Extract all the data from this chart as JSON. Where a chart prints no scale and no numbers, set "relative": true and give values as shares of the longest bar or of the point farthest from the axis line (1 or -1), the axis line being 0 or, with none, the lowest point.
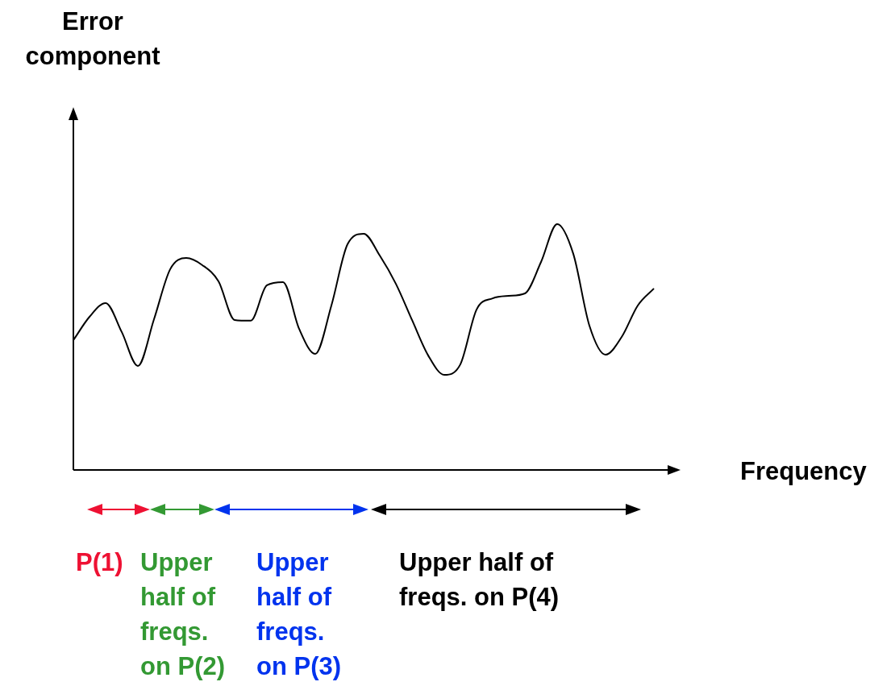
{
  "chart_data": {
    "type": "line",
    "relative": true,
    "xlabel": "Frequency",
    "categories": [
      null,
      null,
      null,
      null,
      null,
      null,
      null,
      null,
      null,
      null,
      null,
      null,
      null,
      null,
      null,
      null,
      null,
      null,
      null,
      null,
      null,
      null,
      null,
      null,
      null,
      null,
      null,
      null,
      null,
      null,
      null,
      null,
      null,
      null,
      null,
      null,
      null
    ],
    "series": [
      {
        "color": "#000000",
        "values": [
          0.528,
          0.623,
          0.679,
          0.561,
          0.423,
          0.613,
          0.816,
          0.862,
          0.833,
          0.767,
          0.61,
          0.607,
          0.751,
          0.764,
          0.574,
          0.472,
          0.669,
          0.918,
          0.961,
          0.872,
          0.757,
          0.61,
          0.466,
          0.387,
          0.43,
          0.652,
          0.698,
          0.708,
          0.718,
          0.846,
          1,
          0.879,
          0.587,
          0.469,
          0.541,
          0.669,
          0.738
        ]
      }
    ],
    "marker": "none",
    "line_style": "solid",
    "grid": false,
    "legend": false,
    "annotations": [
      "P(1)",
      "Upper half of freqs. on P(2)",
      "Upper half of freqs. on P(3)",
      "Upper half of freqs. on P(4)",
      "Error component"
    ]
  }
}
